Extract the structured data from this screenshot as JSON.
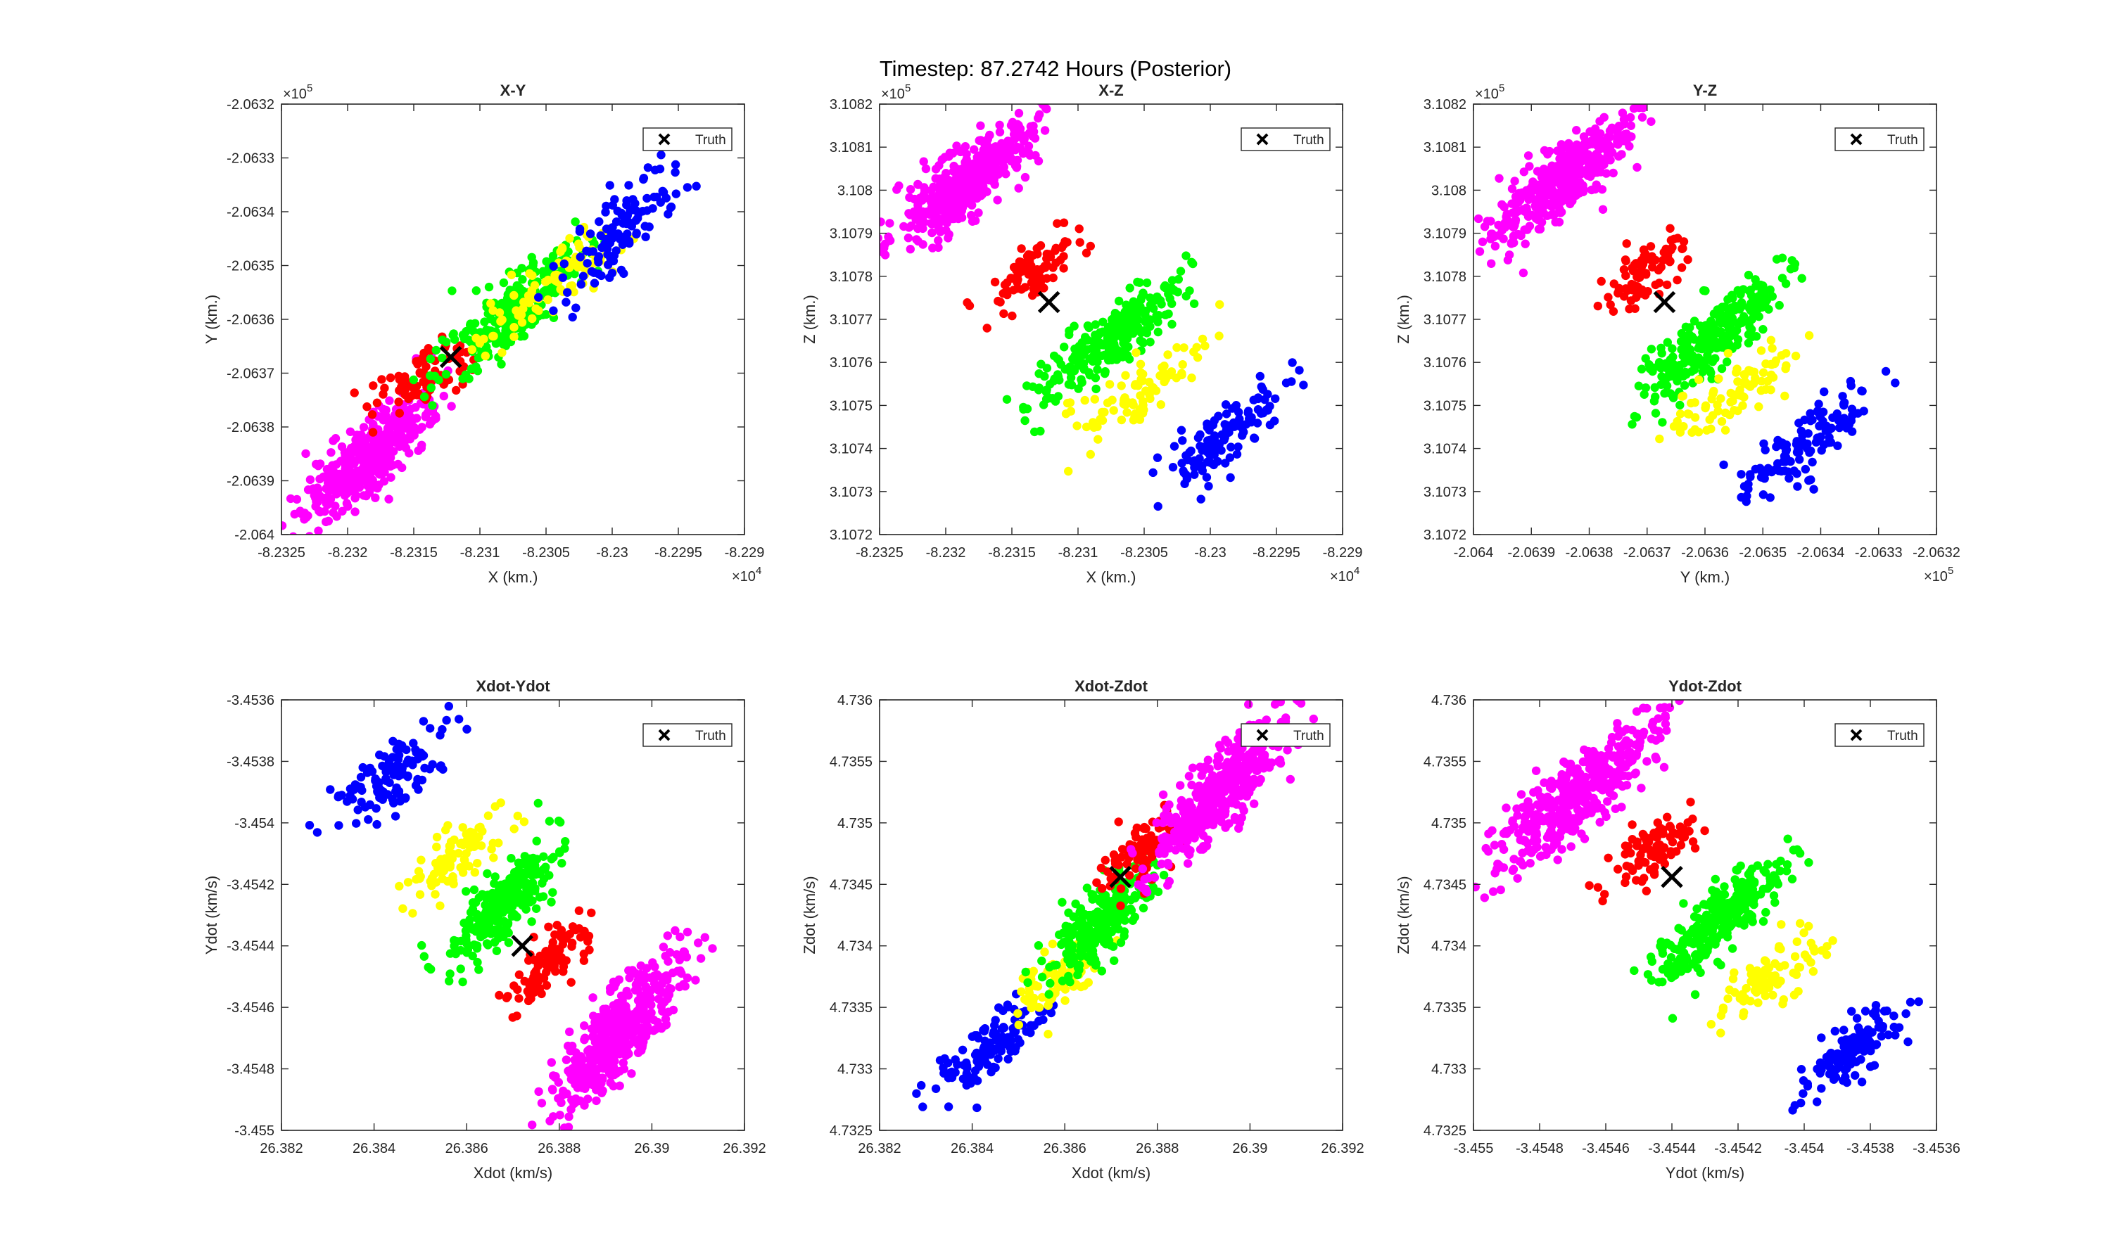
{
  "figure": {
    "title": "Timestep: 87.2742 Hours (Posterior)"
  },
  "colors": {
    "pink": "#ff00ff",
    "red": "#ff0000",
    "green": "#00ff00",
    "yellow": "#ffff00",
    "blue": "#0000ff",
    "truth": "#000000",
    "axis": "#262626"
  },
  "chart_data": [
    {
      "type": "scatter",
      "title": "X-Y",
      "xlabel": "X (km.)",
      "ylabel": "Y (km.)",
      "xlim": [
        -8.2325,
        -8.229
      ],
      "ylim": [
        -2.064,
        -2.0632
      ],
      "xticks": [
        "-8.2325",
        "-8.232",
        "-8.2315",
        "-8.231",
        "-8.2305",
        "-8.23",
        "-8.2295",
        "-8.229"
      ],
      "yticks": [
        "-2.064",
        "-2.0639",
        "-2.0638",
        "-2.0637",
        "-2.0636",
        "-2.0635",
        "-2.0634",
        "-2.0633",
        "-2.0632"
      ],
      "x_exponent": "×10",
      "x_exponent_power": "4",
      "y_exponent": "×10",
      "y_exponent_power": "5",
      "legend": {
        "label": "Truth",
        "position": "top-right"
      },
      "truth": [
        -8.23122,
        -2.06367
      ],
      "clusters": [
        {
          "color": "pink",
          "x": [
            -8.23235,
            -8.2313
          ],
          "y": [
            -2.06398,
            -2.06372
          ],
          "density": 420
        },
        {
          "color": "red",
          "x": [
            -8.2318,
            -8.23095
          ],
          "y": [
            -2.06378,
            -2.06362
          ],
          "density": 90
        },
        {
          "color": "green",
          "x": [
            -8.23135,
            -8.2302
          ],
          "y": [
            -2.06372,
            -2.06346
          ],
          "density": 260
        },
        {
          "color": "yellow",
          "x": [
            -8.2311,
            -8.2299
          ],
          "y": [
            -2.06365,
            -2.06343
          ],
          "density": 90
        },
        {
          "color": "blue",
          "x": [
            -8.23045,
            -8.2294
          ],
          "y": [
            -2.06358,
            -2.06328
          ],
          "density": 120
        }
      ]
    },
    {
      "type": "scatter",
      "title": "X-Z",
      "xlabel": "X (km.)",
      "ylabel": "Z (km.)",
      "xlim": [
        -8.2325,
        -8.229
      ],
      "ylim": [
        3.1072,
        3.1082
      ],
      "xticks": [
        "-8.2325",
        "-8.232",
        "-8.2315",
        "-8.231",
        "-8.2305",
        "-8.23",
        "-8.2295",
        "-8.229"
      ],
      "yticks": [
        "3.1072",
        "3.1073",
        "3.1074",
        "3.1075",
        "3.1076",
        "3.1077",
        "3.1078",
        "3.1079",
        "3.108",
        "3.1081",
        "3.1082"
      ],
      "x_exponent": "×10",
      "x_exponent_power": "4",
      "y_exponent": "×10",
      "y_exponent_power": "5",
      "legend": {
        "label": "Truth",
        "position": "top-right"
      },
      "truth": [
        -8.23122,
        3.10774
      ],
      "clusters": [
        {
          "color": "pink",
          "x": [
            -8.2324,
            -8.2313
          ],
          "y": [
            3.10788,
            3.10816
          ],
          "density": 420
        },
        {
          "color": "red",
          "x": [
            -8.2317,
            -8.23095
          ],
          "y": [
            3.10772,
            3.1079
          ],
          "density": 90
        },
        {
          "color": "green",
          "x": [
            -8.23135,
            -8.2302
          ],
          "y": [
            3.1075,
            3.1078
          ],
          "density": 260
        },
        {
          "color": "yellow",
          "x": [
            -8.2311,
            -8.2299
          ],
          "y": [
            3.10742,
            3.10766
          ],
          "density": 90
        },
        {
          "color": "blue",
          "x": [
            -8.2304,
            -8.2294
          ],
          "y": [
            3.10728,
            3.10756
          ],
          "density": 120
        }
      ]
    },
    {
      "type": "scatter",
      "title": "Y-Z",
      "xlabel": "Y (km.)",
      "ylabel": "Z (km.)",
      "xlim": [
        -2.064,
        -2.0632
      ],
      "ylim": [
        3.1072,
        3.1082
      ],
      "xticks": [
        "-2.064",
        "-2.0639",
        "-2.0638",
        "-2.0637",
        "-2.0636",
        "-2.0635",
        "-2.0634",
        "-2.0633",
        "-2.0632"
      ],
      "yticks": [
        "3.1072",
        "3.1073",
        "3.1074",
        "3.1075",
        "3.1076",
        "3.1077",
        "3.1078",
        "3.1079",
        "3.108",
        "3.1081",
        "3.1082"
      ],
      "x_exponent": "×10",
      "x_exponent_power": "5",
      "y_exponent": "×10",
      "y_exponent_power": "5",
      "legend": {
        "label": "Truth",
        "position": "top-right"
      },
      "truth": [
        -2.06367,
        3.10774
      ],
      "clusters": [
        {
          "color": "pink",
          "x": [
            -2.06398,
            -2.06372
          ],
          "y": [
            3.10788,
            3.10816
          ],
          "density": 420
        },
        {
          "color": "red",
          "x": [
            -2.06378,
            -2.06362
          ],
          "y": [
            3.10772,
            3.1079
          ],
          "density": 90
        },
        {
          "color": "green",
          "x": [
            -2.06372,
            -2.06346
          ],
          "y": [
            3.1075,
            3.1078
          ],
          "density": 260
        },
        {
          "color": "yellow",
          "x": [
            -2.06365,
            -2.06343
          ],
          "y": [
            3.10742,
            3.10766
          ],
          "density": 90
        },
        {
          "color": "blue",
          "x": [
            -2.06358,
            -2.06328
          ],
          "y": [
            3.10728,
            3.10756
          ],
          "density": 120
        }
      ]
    },
    {
      "type": "scatter",
      "title": "Xdot-Ydot",
      "xlabel": "Xdot (km/s)",
      "ylabel": "Ydot (km/s)",
      "xlim": [
        26.382,
        26.392
      ],
      "ylim": [
        -3.455,
        -3.4536
      ],
      "xticks": [
        "26.382",
        "26.384",
        "26.386",
        "26.388",
        "26.39",
        "26.392"
      ],
      "yticks": [
        "-3.455",
        "-3.4548",
        "-3.4546",
        "-3.4544",
        "-3.4542",
        "-3.454",
        "-3.4538",
        "-3.4536"
      ],
      "legend": {
        "label": "Truth",
        "position": "top-right"
      },
      "truth": [
        26.3872,
        -3.4544
      ],
      "clusters": [
        {
          "color": "blue",
          "x": [
            26.383,
            26.3857
          ],
          "y": [
            -3.45402,
            -3.4537
          ],
          "density": 120
        },
        {
          "color": "yellow",
          "x": [
            26.3848,
            26.3868
          ],
          "y": [
            -3.45426,
            -3.45395
          ],
          "density": 90
        },
        {
          "color": "green",
          "x": [
            26.3856,
            26.388
          ],
          "y": [
            -3.45447,
            -3.45405
          ],
          "density": 260
        },
        {
          "color": "red",
          "x": [
            26.3868,
            26.3886
          ],
          "y": [
            -3.4546,
            -3.45432
          ],
          "density": 90
        },
        {
          "color": "pink",
          "x": [
            26.3878,
            26.3908
          ],
          "y": [
            -3.45496,
            -3.4544
          ],
          "density": 420
        }
      ]
    },
    {
      "type": "scatter",
      "title": "Xdot-Zdot",
      "xlabel": "Xdot (km/s)",
      "ylabel": "Zdot (km/s)",
      "xlim": [
        26.382,
        26.392
      ],
      "ylim": [
        4.7325,
        4.736
      ],
      "xticks": [
        "26.382",
        "26.384",
        "26.386",
        "26.388",
        "26.39",
        "26.392"
      ],
      "yticks": [
        "4.7325",
        "4.733",
        "4.7335",
        "4.734",
        "4.7345",
        "4.735",
        "4.7355",
        "4.736"
      ],
      "legend": {
        "label": "Truth",
        "position": "top-right"
      },
      "truth": [
        26.3872,
        4.73456
      ],
      "clusters": [
        {
          "color": "blue",
          "x": [
            26.383,
            26.3857
          ],
          "y": [
            4.73275,
            4.73355
          ],
          "density": 120
        },
        {
          "color": "yellow",
          "x": [
            26.3848,
            26.3868
          ],
          "y": [
            4.73335,
            4.7341
          ],
          "density": 90
        },
        {
          "color": "green",
          "x": [
            26.3856,
            26.388
          ],
          "y": [
            4.7337,
            4.7347
          ],
          "density": 260
        },
        {
          "color": "red",
          "x": [
            26.3868,
            26.3886
          ],
          "y": [
            4.73445,
            4.7351
          ],
          "density": 90
        },
        {
          "color": "pink",
          "x": [
            26.3878,
            26.3908
          ],
          "y": [
            4.7346,
            4.7359
          ],
          "density": 420
        }
      ]
    },
    {
      "type": "scatter",
      "title": "Ydot-Zdot",
      "xlabel": "Ydot (km/s)",
      "ylabel": "Zdot (km/s)",
      "xlim": [
        -3.455,
        -3.4536
      ],
      "ylim": [
        4.7325,
        4.736
      ],
      "xticks": [
        "-3.455",
        "-3.4548",
        "-3.4546",
        "-3.4544",
        "-3.4542",
        "-3.454",
        "-3.4538",
        "-3.4536"
      ],
      "yticks": [
        "4.7325",
        "4.733",
        "4.7335",
        "4.734",
        "4.7345",
        "4.735",
        "4.7355",
        "4.736"
      ],
      "legend": {
        "label": "Truth",
        "position": "top-right"
      },
      "truth": [
        -3.4544,
        4.73456
      ],
      "clusters": [
        {
          "color": "pink",
          "x": [
            -3.45496,
            -3.4544
          ],
          "y": [
            4.7346,
            4.7359
          ],
          "density": 420
        },
        {
          "color": "red",
          "x": [
            -3.4546,
            -3.45432
          ],
          "y": [
            4.73445,
            4.7351
          ],
          "density": 90
        },
        {
          "color": "green",
          "x": [
            -3.45447,
            -3.45405
          ],
          "y": [
            4.7337,
            4.7347
          ],
          "density": 260
        },
        {
          "color": "yellow",
          "x": [
            -3.45426,
            -3.45395
          ],
          "y": [
            4.73335,
            4.7341
          ],
          "density": 90
        },
        {
          "color": "blue",
          "x": [
            -3.45402,
            -3.4537
          ],
          "y": [
            4.73275,
            4.73355
          ],
          "density": 120
        }
      ]
    }
  ]
}
